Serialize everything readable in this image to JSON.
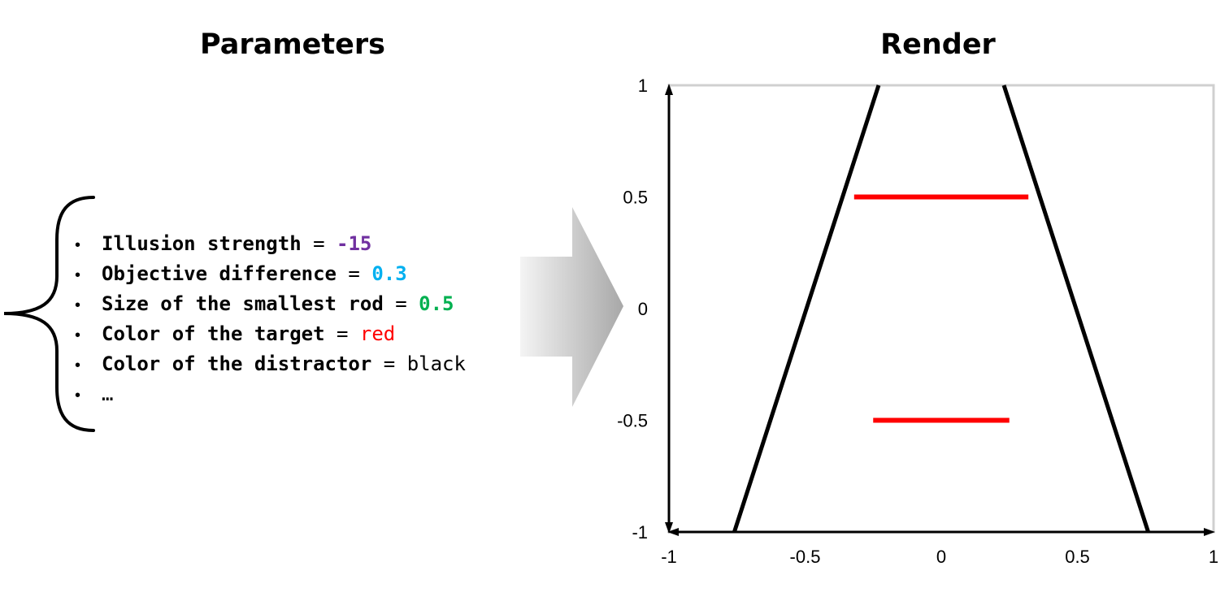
{
  "titles": {
    "parameters": "Parameters",
    "render": "Render"
  },
  "parameters": [
    {
      "name": "Illusion strength",
      "sep": " = ",
      "value": "-15",
      "value_color": "#7030a0",
      "value_bold": true
    },
    {
      "name": "Objective difference",
      "sep": " = ",
      "value": "0.3",
      "value_color": "#00b0f0",
      "value_bold": true
    },
    {
      "name": "Size of the smallest rod",
      "sep": " = ",
      "value": "0.5",
      "value_color": "#00b050",
      "value_bold": true
    },
    {
      "name": "Color of the target",
      "sep": " = ",
      "value": "red",
      "value_color": "#ff0000",
      "value_bold": false
    },
    {
      "name": "Color of the distractor",
      "sep": " = ",
      "value": "black",
      "value_color": "#000000",
      "value_bold": false
    },
    {
      "name": "…",
      "sep": "",
      "value": "",
      "value_color": "#000000",
      "value_bold": false
    }
  ],
  "render_plot": {
    "x_ticks": [
      "-1",
      "-0.5",
      "0",
      "0.5",
      "1"
    ],
    "y_ticks": [
      "1",
      "0.5",
      "0",
      "-0.5",
      "-1"
    ],
    "xlim": [
      -1,
      1
    ],
    "ylim": [
      -1,
      1
    ],
    "distractor_color": "#000000",
    "target_color": "#ff0000",
    "frame_color": "#d0d0d0",
    "distractor_lines": [
      {
        "x1": -0.76,
        "y1": -1.0,
        "x2": -0.23,
        "y2": 1.0
      },
      {
        "x1": 0.76,
        "y1": -1.0,
        "x2": 0.23,
        "y2": 1.0
      }
    ],
    "target_lines": [
      {
        "x1": -0.32,
        "y1": 0.5,
        "x2": 0.32,
        "y2": 0.5
      },
      {
        "x1": -0.25,
        "y1": -0.5,
        "x2": 0.25,
        "y2": -0.5
      }
    ]
  }
}
